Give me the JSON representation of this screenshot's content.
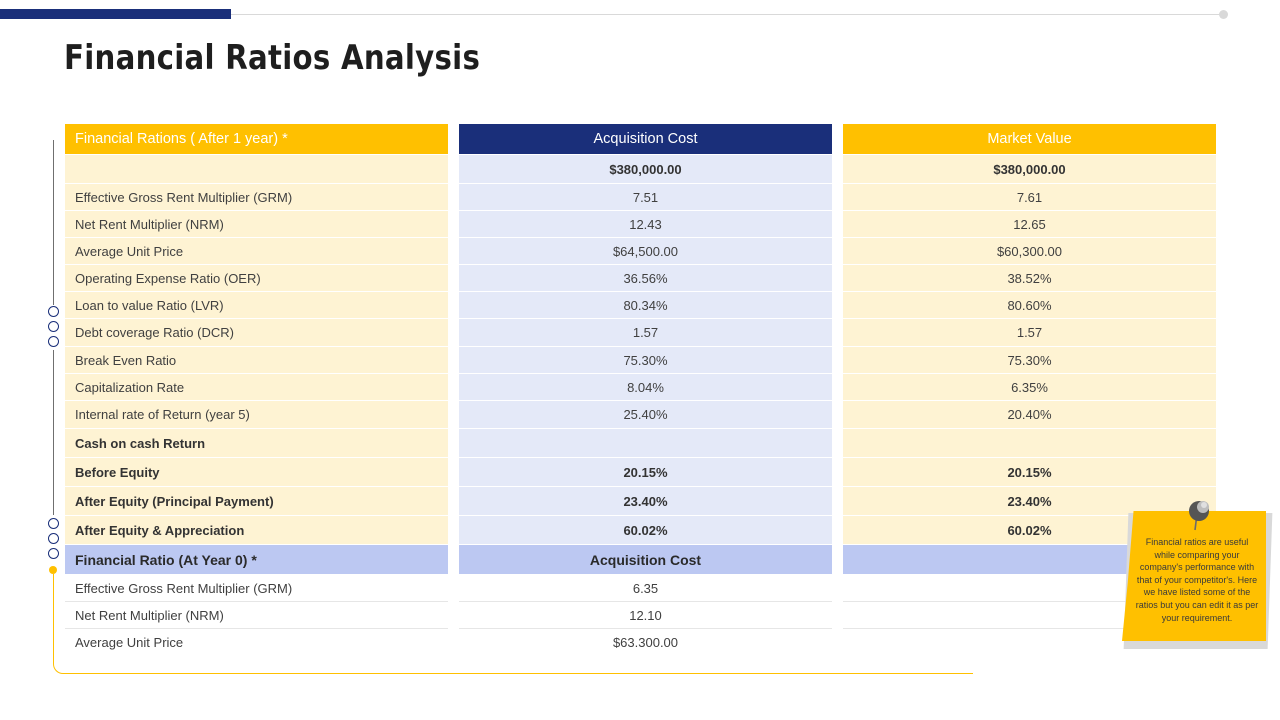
{
  "title": "Financial Ratios Analysis",
  "table": {
    "header": {
      "col1": "Financial Rations ( After 1 year) *",
      "col2": "Acquisition Cost",
      "col3": "Market Value"
    },
    "totals": {
      "label": "",
      "acquisition": "$380,000.00",
      "market": "$380,000.00"
    },
    "rows": [
      {
        "label": "Effective Gross Rent Multiplier (GRM)",
        "acquisition": "7.51",
        "market": "7.61"
      },
      {
        "label": "Net Rent Multiplier (NRM)",
        "acquisition": "12.43",
        "market": "12.65"
      },
      {
        "label": "Average  Unit Price",
        "acquisition": "$64,500.00",
        "market": "$60,300.00"
      },
      {
        "label": "Operating Expense Ratio (OER)",
        "acquisition": "36.56%",
        "market": "38.52%"
      },
      {
        "label": "Loan to value Ratio (LVR)",
        "acquisition": "80.34%",
        "market": "80.60%"
      },
      {
        "label": "Debt coverage  Ratio (DCR)",
        "acquisition": "1.57",
        "market": "1.57"
      },
      {
        "label": "Break  Even Ratio",
        "acquisition": "75.30%",
        "market": "75.30%"
      },
      {
        "label": "Capitalization Rate",
        "acquisition": "8.04%",
        "market": "6.35%"
      },
      {
        "label": "Internal rate of Return (year 5)",
        "acquisition": "25.40%",
        "market": "20.40%"
      }
    ],
    "cash_section": {
      "label": "Cash on cash Return",
      "acquisition": "",
      "market": ""
    },
    "cash_rows": [
      {
        "label": "Before Equity",
        "acquisition": "20.15%",
        "market": "20.15%"
      },
      {
        "label": "After Equity (Principal Payment)",
        "acquisition": "23.40%",
        "market": "23.40%"
      },
      {
        "label": "After Equity & Appreciation",
        "acquisition": "60.02%",
        "market": "60.02%"
      }
    ],
    "year0_header": {
      "label": "Financial Ratio (At Year 0) *",
      "acquisition": "Acquisition Cost"
    },
    "year0_rows": [
      {
        "label": "Effective Gross Rent Multiplier (GRM)",
        "acquisition": "6.35"
      },
      {
        "label": "Net Rent Multiplier (NRM)",
        "acquisition": "12.10"
      },
      {
        "label": "Average  Unit Price",
        "acquisition": "$63.300.00"
      }
    ]
  },
  "note": {
    "text": "Financial ratios are useful while comparing your company's performance with that of your competitor's. Here we have listed some of the ratios but you can edit it as per your requirement."
  },
  "colors": {
    "navy": "#1a2f7a",
    "gold": "#ffc000",
    "cream": "#fef3d3",
    "light_blue": "#e4e9f8",
    "section_blue": "#bcc8f2"
  }
}
